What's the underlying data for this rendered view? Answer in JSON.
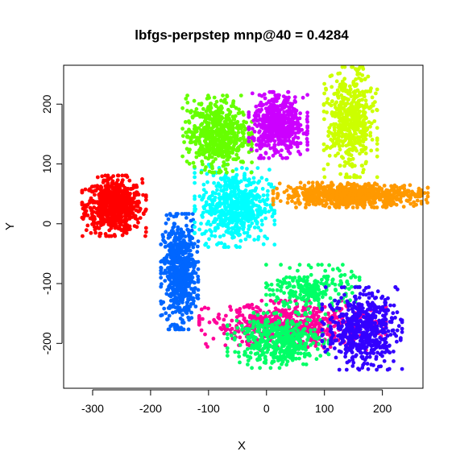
{
  "chart_data": {
    "type": "scatter",
    "title": "lbfgs-perpstep mnp@40 = 0.4284",
    "xlabel": "X",
    "ylabel": "Y",
    "xlim": [
      -350,
      270
    ],
    "ylim": [
      -275,
      265
    ],
    "grid": false,
    "legend": "none",
    "x_ticks": [
      -300,
      -200,
      -100,
      0,
      100,
      200
    ],
    "y_ticks": [
      -200,
      -100,
      0,
      100,
      200
    ],
    "clusters": [
      {
        "color": "#ff0000",
        "center": [
          -263,
          30
        ],
        "spread": [
          24,
          22
        ],
        "count": 700
      },
      {
        "color": "#0066ff",
        "center": [
          -150,
          -80
        ],
        "spread": [
          14,
          42
        ],
        "count": 650
      },
      {
        "color": "#00ffff",
        "center": [
          -55,
          30
        ],
        "spread": [
          30,
          30
        ],
        "count": 600
      },
      {
        "color": "#66ff00",
        "center": [
          -85,
          150
        ],
        "spread": [
          26,
          28
        ],
        "count": 600
      },
      {
        "color": "#cc00ff",
        "center": [
          20,
          165
        ],
        "spread": [
          22,
          24
        ],
        "count": 550
      },
      {
        "color": "#ccff00",
        "center": [
          145,
          170
        ],
        "spread": [
          20,
          40
        ],
        "count": 550
      },
      {
        "color": "#ff9900",
        "center": [
          145,
          48
        ],
        "spread": [
          58,
          9
        ],
        "count": 800
      },
      {
        "color": "#ff0099",
        "center": [
          45,
          -170
        ],
        "spread": [
          70,
          18
        ],
        "count": 650
      },
      {
        "color": "#00ff66",
        "center": [
          20,
          -195
        ],
        "spread": [
          38,
          20
        ],
        "count": 450
      },
      {
        "color": "#00ff66",
        "center": [
          80,
          -110
        ],
        "spread": [
          35,
          18
        ],
        "count": 250
      },
      {
        "color": "#3300ff",
        "center": [
          165,
          -175
        ],
        "spread": [
          30,
          30
        ],
        "count": 550
      }
    ]
  }
}
